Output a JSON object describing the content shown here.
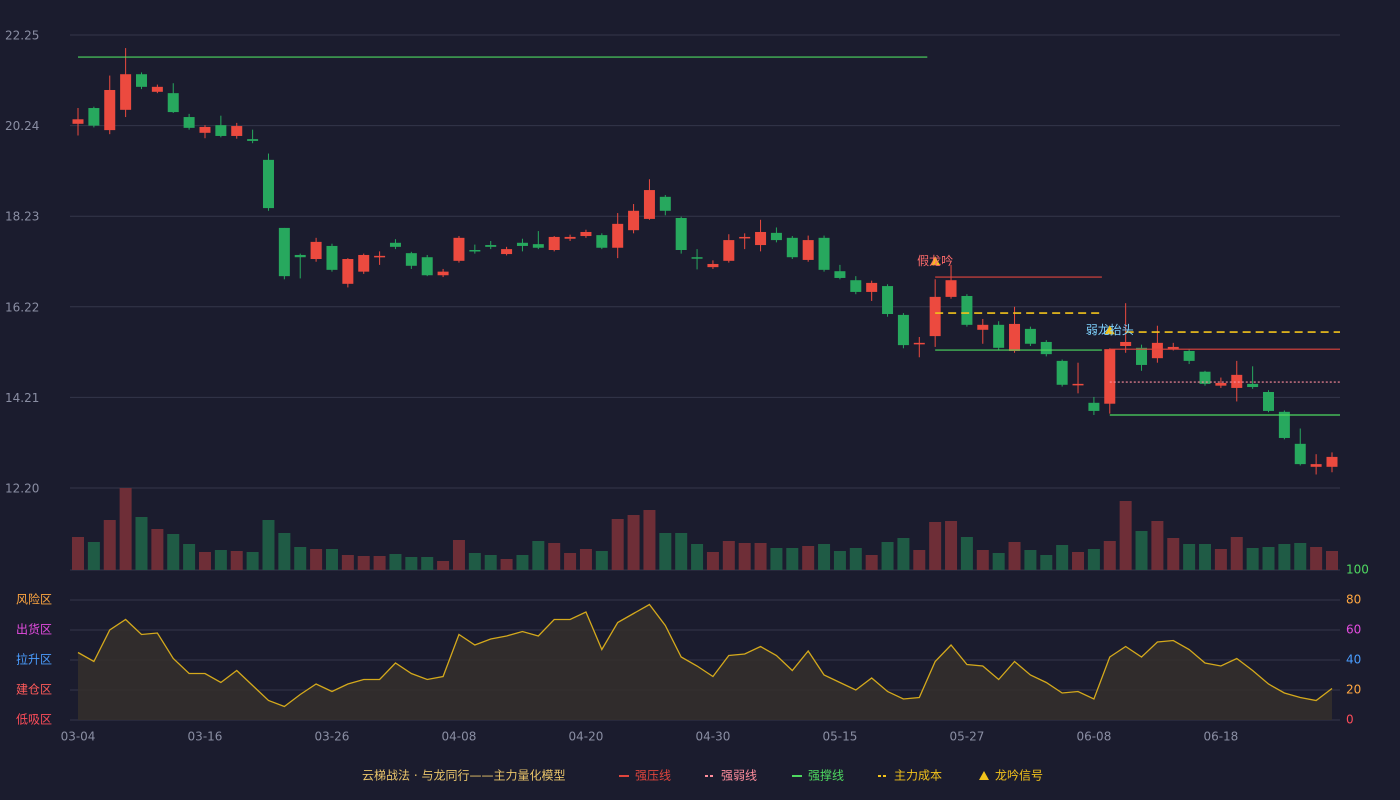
{
  "chart_data": {
    "type": "candlestick",
    "title": "云梯战法 · 与龙同行——主力量化模型",
    "up_color": "#ec4a3f",
    "down_color": "#27a85e",
    "volume_up_color": "#6e2e37",
    "volume_down_color": "#1f5b45",
    "categories": [
      "03-04",
      null,
      null,
      null,
      null,
      null,
      null,
      null,
      "03-16",
      null,
      null,
      null,
      null,
      null,
      null,
      null,
      "03-26",
      null,
      null,
      null,
      null,
      null,
      null,
      null,
      "04-08",
      null,
      null,
      null,
      null,
      null,
      null,
      null,
      "04-20",
      null,
      null,
      null,
      null,
      null,
      null,
      null,
      "04-30",
      null,
      null,
      null,
      null,
      null,
      null,
      null,
      "05-15",
      null,
      null,
      null,
      null,
      null,
      null,
      null,
      "05-27",
      null,
      null,
      null,
      null,
      null,
      null,
      null,
      "06-08",
      null,
      null,
      null,
      null,
      null,
      null,
      null,
      "06-18",
      null,
      null,
      null,
      null,
      null,
      null,
      null
    ],
    "open": [
      20.28,
      20.63,
      20.14,
      20.59,
      21.38,
      20.99,
      20.96,
      20.43,
      20.08,
      20.25,
      20.01,
      19.94,
      19.48,
      17.97,
      17.37,
      17.28,
      17.57,
      16.73,
      17.0,
      17.32,
      17.64,
      17.41,
      17.32,
      16.92,
      17.24,
      17.48,
      17.59,
      17.39,
      17.64,
      17.61,
      17.48,
      17.73,
      17.79,
      17.81,
      17.53,
      17.92,
      18.17,
      18.66,
      18.19,
      17.32,
      17.1,
      17.24,
      17.75,
      17.59,
      17.86,
      17.75,
      17.26,
      17.75,
      17.01,
      16.81,
      16.55,
      16.68,
      16.04,
      15.4,
      15.57,
      16.44,
      16.46,
      15.71,
      15.82,
      15.24,
      15.73,
      15.44,
      15.02,
      14.49,
      14.09,
      14.07,
      15.35,
      15.31,
      15.08,
      15.28,
      15.24,
      14.78,
      14.47,
      14.42,
      14.51,
      14.33,
      13.89,
      13.18,
      12.67,
      12.67
    ],
    "high": [
      20.63,
      20.66,
      21.35,
      21.96,
      21.42,
      21.15,
      21.18,
      20.5,
      20.25,
      20.46,
      20.3,
      20.15,
      19.62,
      17.97,
      17.4,
      17.75,
      17.62,
      17.3,
      17.4,
      17.45,
      17.72,
      17.44,
      17.37,
      17.06,
      17.79,
      17.6,
      17.68,
      17.55,
      17.73,
      17.9,
      17.79,
      17.82,
      17.93,
      17.85,
      18.3,
      18.5,
      19.05,
      18.7,
      18.22,
      17.5,
      17.25,
      17.83,
      17.85,
      18.15,
      17.98,
      17.79,
      17.8,
      17.8,
      17.15,
      16.9,
      16.8,
      16.72,
      16.08,
      15.55,
      16.83,
      17.15,
      16.5,
      15.95,
      15.9,
      16.22,
      15.78,
      15.48,
      15.05,
      14.98,
      14.22,
      15.3,
      16.3,
      15.38,
      15.8,
      15.42,
      15.28,
      14.8,
      14.65,
      15.02,
      14.9,
      14.37,
      13.92,
      13.52,
      12.95,
      12.99
    ],
    "low": [
      20.02,
      20.2,
      20.05,
      20.43,
      21.05,
      20.96,
      20.52,
      20.15,
      19.96,
      19.98,
      19.95,
      19.85,
      18.35,
      16.83,
      16.85,
      17.22,
      17.0,
      16.65,
      16.95,
      17.15,
      17.5,
      17.06,
      16.9,
      16.88,
      17.2,
      17.4,
      17.5,
      17.36,
      17.45,
      17.5,
      17.45,
      17.68,
      17.75,
      17.5,
      17.3,
      17.85,
      18.15,
      18.25,
      17.4,
      17.05,
      17.06,
      17.2,
      17.5,
      17.45,
      17.65,
      17.28,
      17.22,
      17.0,
      16.83,
      16.5,
      16.35,
      16.0,
      15.3,
      15.1,
      15.33,
      16.4,
      15.78,
      15.4,
      15.25,
      15.2,
      15.35,
      15.12,
      14.45,
      14.3,
      13.82,
      13.85,
      15.2,
      14.8,
      14.98,
      15.25,
      14.95,
      14.47,
      14.42,
      14.12,
      14.4,
      13.88,
      13.28,
      12.7,
      12.5,
      12.55
    ],
    "close": [
      20.38,
      20.24,
      21.03,
      21.38,
      21.1,
      21.1,
      20.54,
      20.19,
      20.21,
      20.01,
      20.23,
      19.9,
      18.41,
      16.9,
      17.32,
      17.66,
      17.04,
      17.28,
      17.37,
      17.35,
      17.55,
      17.13,
      16.92,
      17.0,
      17.75,
      17.46,
      17.55,
      17.5,
      17.57,
      17.53,
      17.77,
      17.77,
      17.88,
      17.53,
      18.06,
      18.35,
      18.81,
      18.35,
      17.48,
      17.3,
      17.17,
      17.7,
      17.77,
      17.88,
      17.7,
      17.32,
      17.7,
      17.04,
      16.86,
      16.55,
      16.75,
      16.06,
      15.37,
      15.42,
      16.44,
      16.81,
      15.82,
      15.82,
      15.31,
      15.84,
      15.4,
      15.17,
      14.49,
      14.51,
      13.91,
      15.28,
      15.44,
      14.93,
      15.42,
      15.33,
      15.02,
      14.51,
      14.53,
      14.71,
      14.44,
      13.91,
      13.31,
      12.73,
      12.73,
      12.89
    ],
    "ylim": [
      12.2,
      22.25
    ],
    "yticks": [
      {
        "value": 12.2,
        "label": "12.20"
      },
      14.21,
      16.22,
      18.23,
      20.24,
      22.25
    ],
    "grid": true,
    "levels": [
      {
        "name": "强压线",
        "color": "#e0453d",
        "dash": "none",
        "segments": [
          {
            "value": 16.88,
            "x": [
              54,
              64
            ]
          },
          {
            "value": 15.28,
            "x": [
              65,
              79
            ]
          }
        ]
      },
      {
        "name": "强弱线",
        "color": "#ff8d9c",
        "dash": "2,2",
        "segments": [
          {
            "value": 14.55,
            "x": [
              65,
              79
            ]
          }
        ]
      },
      {
        "name": "强撑线",
        "color": "#4ed860",
        "dash": "none",
        "segments": [
          {
            "value": 21.76,
            "x": [
              0,
              53
            ]
          },
          {
            "value": 15.26,
            "x": [
              54,
              64
            ]
          },
          {
            "value": 13.82,
            "x": [
              65,
              79
            ]
          }
        ]
      },
      {
        "name": "主力成本",
        "color": "#f2c21b",
        "dash": "8,5",
        "segments": [
          {
            "value": 16.08,
            "x": [
              54,
              64
            ]
          },
          {
            "value": 15.66,
            "x": [
              66,
              79
            ]
          }
        ]
      }
    ],
    "signals": {
      "name": "龙吟信号",
      "color": "#f2c21b",
      "points": [
        {
          "x": 54,
          "label": "假龙吟",
          "color": "#ff6b6b"
        },
        {
          "x": 65,
          "label": "弱龙抬头",
          "color": "#7fd3ff"
        }
      ]
    },
    "volume": {
      "ylim": [
        0,
        82
      ],
      "values": [
        33,
        28,
        50,
        82,
        53,
        41,
        36,
        26,
        18,
        20,
        19,
        18,
        50,
        37,
        23,
        21,
        21,
        15,
        14,
        14,
        16,
        13,
        13,
        9,
        30,
        17,
        15,
        11,
        15,
        29,
        27,
        17,
        21,
        19,
        51,
        55,
        60,
        37,
        37,
        26,
        18,
        29,
        27,
        27,
        22,
        22,
        24,
        26,
        19,
        22,
        15,
        28,
        32,
        20,
        48,
        49,
        33,
        20,
        17,
        28,
        20,
        15,
        25,
        18,
        21,
        29,
        69,
        39,
        49,
        32,
        26,
        26,
        21,
        33,
        22,
        23,
        26,
        27,
        23,
        19
      ]
    },
    "indicator": {
      "color": "#d4a91c",
      "fill": "#332f2c",
      "ylim": [
        0,
        100
      ],
      "yticks": [
        0,
        20,
        40,
        60,
        80,
        100
      ],
      "tick_colors": [
        "#ff4d5a",
        "#ffa640",
        "#4a9dff",
        "#e44ce0",
        "#ffa640",
        "#4ed860"
      ],
      "zones": [
        {
          "label": "风险区",
          "value": 80,
          "color": "#ffa640"
        },
        {
          "label": "出货区",
          "value": 60,
          "color": "#e44ce0"
        },
        {
          "label": "拉升区",
          "value": 40,
          "color": "#4a9dff"
        },
        {
          "label": "建仓区",
          "value": 20,
          "color": "#ff5a5a"
        },
        {
          "label": "低吸区",
          "value": 0,
          "color": "#ff4d5a"
        }
      ],
      "values": [
        45,
        39,
        60,
        67,
        57,
        58,
        41,
        31,
        31,
        25,
        33,
        23,
        13,
        9,
        17,
        24,
        19,
        24,
        27,
        27,
        38,
        31,
        27,
        29,
        57,
        50,
        54,
        56,
        59,
        56,
        67,
        67,
        72,
        47,
        65,
        71,
        77,
        63,
        42,
        36,
        29,
        43,
        44,
        49,
        43,
        33,
        46,
        30,
        25,
        20,
        28,
        19,
        14,
        15,
        39,
        50,
        37,
        36,
        27,
        39,
        30,
        25,
        18,
        19,
        14,
        42,
        49,
        42,
        52,
        53,
        47,
        38,
        36,
        41,
        33,
        24,
        18,
        15,
        13,
        21
      ]
    }
  }
}
